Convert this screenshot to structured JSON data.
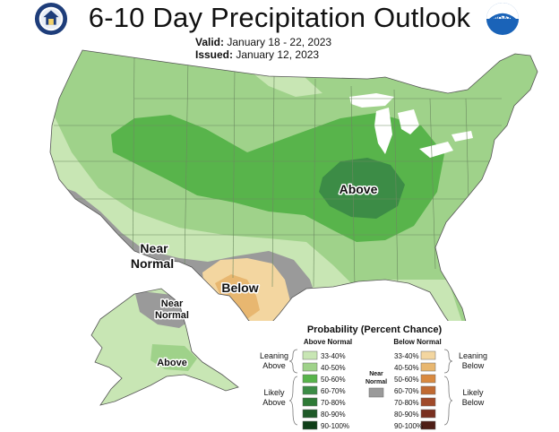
{
  "header": {
    "title": "6-10 Day Precipitation Outlook",
    "valid_label": "Valid:",
    "valid_value": "January 18 - 22, 2023",
    "issued_label": "Issued:",
    "issued_value": "January 12, 2023",
    "left_logo_icon": "department-of-commerce-seal-icon",
    "right_logo_icon": "noaa-logo-icon",
    "right_logo_text": "NOAA"
  },
  "map_labels": {
    "above": "Above",
    "below": "Below",
    "near_normal_conus_line1": "Near",
    "near_normal_conus_line2": "Normal",
    "near_normal_alaska_line1": "Near",
    "near_normal_alaska_line2": "Normal",
    "alaska_above": "Above"
  },
  "legend": {
    "title": "Probability (Percent Chance)",
    "above_header": "Above Normal",
    "below_header": "Below Normal",
    "near_label_line1": "Near",
    "near_label_line2": "Normal",
    "leaning_above_line1": "Leaning",
    "leaning_above_line2": "Above",
    "likely_above_line1": "Likely",
    "likely_above_line2": "Above",
    "leaning_below_line1": "Leaning",
    "leaning_below_line2": "Below",
    "likely_below_line1": "Likely",
    "likely_below_line2": "Below",
    "above_classes": [
      {
        "range": "33-40%",
        "color": "#c8e6b4"
      },
      {
        "range": "40-50%",
        "color": "#9fd28a"
      },
      {
        "range": "50-60%",
        "color": "#58b44b"
      },
      {
        "range": "60-70%",
        "color": "#3c8c46"
      },
      {
        "range": "70-80%",
        "color": "#2e7a36"
      },
      {
        "range": "80-90%",
        "color": "#1f5a28"
      },
      {
        "range": "90-100%",
        "color": "#0f3e18"
      }
    ],
    "below_classes": [
      {
        "range": "33-40%",
        "color": "#f3d6a0"
      },
      {
        "range": "40-50%",
        "color": "#e8b770"
      },
      {
        "range": "50-60%",
        "color": "#d98a40"
      },
      {
        "range": "60-70%",
        "color": "#c06a32"
      },
      {
        "range": "70-80%",
        "color": "#a04a2a"
      },
      {
        "range": "80-90%",
        "color": "#7a3020"
      },
      {
        "range": "90-100%",
        "color": "#4e1e16"
      }
    ],
    "near_color": "#9a9a9a"
  },
  "colors": {
    "above_33_40": "#c8e6b4",
    "above_40_50": "#9fd28a",
    "above_50_60": "#58b44b",
    "above_60_70": "#3c8c46",
    "below_33_40": "#f3d6a0",
    "below_40_50": "#e8b770",
    "near_normal": "#9a9a9a"
  }
}
